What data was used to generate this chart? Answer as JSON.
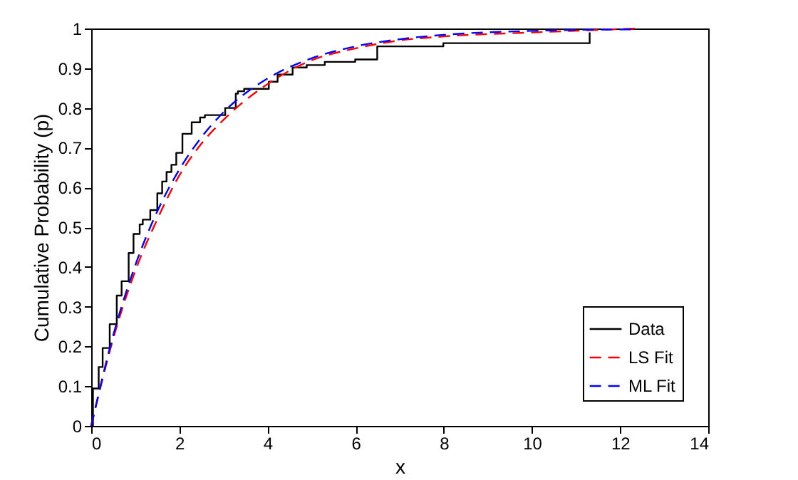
{
  "chart_data": {
    "type": "line",
    "xlabel": "x",
    "ylabel": "Cumulative Probability (p)",
    "xlim": [
      0,
      14
    ],
    "xticks": [
      0,
      2,
      4,
      6,
      8,
      10,
      12,
      14
    ],
    "ylim": [
      0,
      1
    ],
    "yticks": [
      0,
      0.1,
      0.2,
      0.3,
      0.4,
      0.5,
      0.6,
      0.7,
      0.8,
      0.9,
      1
    ],
    "grid": false,
    "legend": "bottom right",
    "series": [
      {
        "name": "Data",
        "type": "step",
        "color": "#000000",
        "line_style": "solid",
        "x": [
          0,
          0.04,
          0.17,
          0.26,
          0.42,
          0.58,
          0.69,
          0.85,
          0.96,
          1.1,
          1.17,
          1.34,
          1.5,
          1.61,
          1.71,
          1.82,
          1.93,
          2.07,
          2.28,
          2.47,
          2.58,
          3.04,
          3.28,
          3.33,
          3.47,
          4.03,
          4.23,
          4.57,
          4.89,
          5.3,
          5.99,
          6.49,
          7.99,
          11.31
        ],
        "values": [
          0,
          0.094,
          0.148,
          0.196,
          0.256,
          0.328,
          0.364,
          0.435,
          0.483,
          0.507,
          0.519,
          0.543,
          0.585,
          0.615,
          0.639,
          0.657,
          0.687,
          0.735,
          0.764,
          0.776,
          0.782,
          0.8,
          0.836,
          0.842,
          0.848,
          0.866,
          0.884,
          0.902,
          0.908,
          0.916,
          0.922,
          0.955,
          0.963,
          0.99
        ]
      },
      {
        "name": "LS Fit",
        "type": "line",
        "color": "#ff0000",
        "line_style": "dashed",
        "x": [
          0,
          0.5,
          1,
          1.5,
          2,
          2.5,
          3,
          4,
          5,
          6,
          7,
          8,
          10,
          12.4
        ],
        "values": [
          0,
          0.22,
          0.39,
          0.52,
          0.63,
          0.71,
          0.77,
          0.86,
          0.92,
          0.95,
          0.97,
          0.98,
          0.99,
          1.0
        ]
      },
      {
        "name": "ML Fit",
        "type": "line",
        "color": "#0000ff",
        "line_style": "dashed",
        "x": [
          0,
          0.5,
          1,
          1.5,
          2,
          2.5,
          3,
          4,
          5,
          6,
          7,
          8,
          10,
          12.4
        ],
        "values": [
          0,
          0.228,
          0.404,
          0.54,
          0.645,
          0.726,
          0.789,
          0.874,
          0.925,
          0.955,
          0.973,
          0.984,
          0.994,
          0.998
        ]
      }
    ]
  }
}
